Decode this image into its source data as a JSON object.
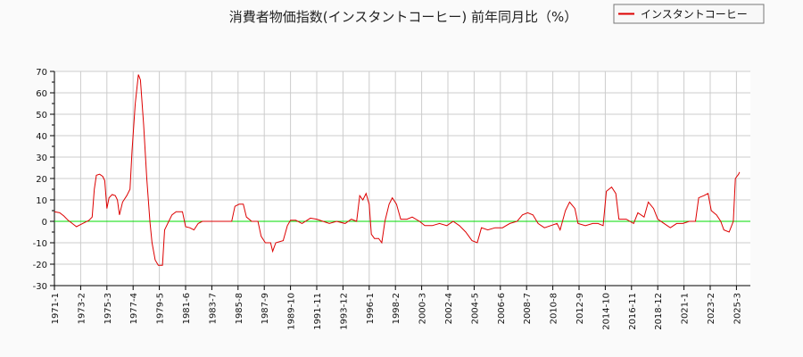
{
  "chart_data": {
    "type": "line",
    "title": "消費者物価指数(インスタントコーヒー) 前年同月比（%）",
    "xlabel": "",
    "ylabel": "",
    "ylim": [
      -30,
      70
    ],
    "yticks": [
      70,
      60,
      50,
      40,
      30,
      20,
      10,
      0,
      -10,
      -20,
      -30
    ],
    "xlim": [
      "1971-1",
      "2025-6"
    ],
    "xticks": [
      "1971-1",
      "1973-2",
      "1975-3",
      "1977-4",
      "1979-5",
      "1981-6",
      "1983-7",
      "1985-8",
      "1987-9",
      "1989-10",
      "1991-11",
      "1993-12",
      "1996-1",
      "1998-2",
      "2000-3",
      "2002-4",
      "2004-5",
      "2006-6",
      "2008-7",
      "2010-8",
      "2012-9",
      "2014-10",
      "2016-11",
      "2018-12",
      "2021-1",
      "2023-2",
      "2025-3"
    ],
    "grid": true,
    "legend": {
      "position": "top-right",
      "entries": [
        "インスタントコーヒー"
      ]
    },
    "reference_line": {
      "y": 0,
      "color": "#00dd00"
    },
    "series": [
      {
        "name": "インスタントコーヒー",
        "color": "#dd0000",
        "points": [
          [
            "1971-1",
            4.5
          ],
          [
            "1971-6",
            4
          ],
          [
            "1971-10",
            2.5
          ],
          [
            "1972-2",
            0.5
          ],
          [
            "1972-6",
            -1
          ],
          [
            "1972-10",
            -2.5
          ],
          [
            "1973-2",
            -1.5
          ],
          [
            "1973-6",
            -0.5
          ],
          [
            "1973-10",
            0.5
          ],
          [
            "1974-1",
            2
          ],
          [
            "1974-3",
            15
          ],
          [
            "1974-5",
            21.5
          ],
          [
            "1974-8",
            22
          ],
          [
            "1974-11",
            21
          ],
          [
            "1975-1",
            19
          ],
          [
            "1975-3",
            6
          ],
          [
            "1975-5",
            11
          ],
          [
            "1975-8",
            12.5
          ],
          [
            "1975-11",
            12
          ],
          [
            "1976-1",
            10
          ],
          [
            "1976-3",
            3
          ],
          [
            "1976-6",
            9
          ],
          [
            "1976-10",
            12
          ],
          [
            "1977-1",
            15
          ],
          [
            "1977-3",
            33
          ],
          [
            "1977-6",
            55
          ],
          [
            "1977-9",
            68.5
          ],
          [
            "1977-11",
            66
          ],
          [
            "1978-2",
            45
          ],
          [
            "1978-5",
            20
          ],
          [
            "1978-8",
            0
          ],
          [
            "1978-10",
            -10
          ],
          [
            "1979-1",
            -18
          ],
          [
            "1979-4",
            -20.5
          ],
          [
            "1979-8",
            -20.5
          ],
          [
            "1979-10",
            -4
          ],
          [
            "1980-1",
            -1
          ],
          [
            "1980-5",
            3
          ],
          [
            "1980-9",
            4.5
          ],
          [
            "1981-3",
            4.5
          ],
          [
            "1981-6",
            -2.5
          ],
          [
            "1981-10",
            -3
          ],
          [
            "1982-2",
            -4
          ],
          [
            "1982-6",
            -1
          ],
          [
            "1982-10",
            0
          ],
          [
            "1983-6",
            0
          ],
          [
            "1984-6",
            0
          ],
          [
            "1985-2",
            0
          ],
          [
            "1985-5",
            7
          ],
          [
            "1985-9",
            8
          ],
          [
            "1986-1",
            8
          ],
          [
            "1986-4",
            2
          ],
          [
            "1986-9",
            0
          ],
          [
            "1987-3",
            0
          ],
          [
            "1987-6",
            -7
          ],
          [
            "1987-10",
            -10
          ],
          [
            "1988-3",
            -10
          ],
          [
            "1988-5",
            -14
          ],
          [
            "1988-8",
            -10
          ],
          [
            "1989-3",
            -9
          ],
          [
            "1989-7",
            -2
          ],
          [
            "1989-10",
            0.5
          ],
          [
            "1990-3",
            0.5
          ],
          [
            "1990-9",
            -1
          ],
          [
            "1991-5",
            1.5
          ],
          [
            "1991-11",
            1
          ],
          [
            "1992-5",
            0
          ],
          [
            "1992-11",
            -1
          ],
          [
            "1993-6",
            0
          ],
          [
            "1994-2",
            -1
          ],
          [
            "1994-8",
            1
          ],
          [
            "1995-1",
            0
          ],
          [
            "1995-4",
            12
          ],
          [
            "1995-7",
            10
          ],
          [
            "1995-10",
            13
          ],
          [
            "1996-1",
            8
          ],
          [
            "1996-3",
            -6
          ],
          [
            "1996-6",
            -8
          ],
          [
            "1996-10",
            -8
          ],
          [
            "1997-1",
            -10
          ],
          [
            "1997-4",
            0
          ],
          [
            "1997-8",
            8
          ],
          [
            "1997-11",
            11
          ],
          [
            "1998-3",
            8
          ],
          [
            "1998-7",
            1
          ],
          [
            "1999-1",
            1
          ],
          [
            "1999-6",
            2
          ],
          [
            "2000-1",
            0
          ],
          [
            "2000-6",
            -2
          ],
          [
            "2001-1",
            -2
          ],
          [
            "2001-8",
            -1
          ],
          [
            "2002-3",
            -2
          ],
          [
            "2002-9",
            0
          ],
          [
            "2003-3",
            -2
          ],
          [
            "2003-9",
            -5
          ],
          [
            "2004-3",
            -9
          ],
          [
            "2004-8",
            -10
          ],
          [
            "2004-12",
            -3
          ],
          [
            "2005-6",
            -4
          ],
          [
            "2006-1",
            -3
          ],
          [
            "2006-8",
            -3
          ],
          [
            "2007-3",
            -1
          ],
          [
            "2007-10",
            0
          ],
          [
            "2008-3",
            3
          ],
          [
            "2008-8",
            4
          ],
          [
            "2009-1",
            3
          ],
          [
            "2009-6",
            -1
          ],
          [
            "2009-12",
            -3
          ],
          [
            "2010-6",
            -2
          ],
          [
            "2010-12",
            -1
          ],
          [
            "2011-3",
            -4
          ],
          [
            "2011-8",
            5
          ],
          [
            "2011-12",
            9
          ],
          [
            "2012-5",
            6
          ],
          [
            "2012-8",
            -1
          ],
          [
            "2013-3",
            -2
          ],
          [
            "2013-10",
            -1
          ],
          [
            "2014-3",
            -1
          ],
          [
            "2014-8",
            -2
          ],
          [
            "2014-11",
            14
          ],
          [
            "2015-4",
            16
          ],
          [
            "2015-8",
            13
          ],
          [
            "2015-11",
            1
          ],
          [
            "2016-6",
            1
          ],
          [
            "2017-1",
            -1
          ],
          [
            "2017-5",
            4
          ],
          [
            "2017-11",
            2
          ],
          [
            "2018-3",
            9
          ],
          [
            "2018-8",
            6
          ],
          [
            "2018-12",
            1
          ],
          [
            "2019-6",
            -1
          ],
          [
            "2019-12",
            -3
          ],
          [
            "2020-6",
            -1
          ],
          [
            "2020-12",
            -1
          ],
          [
            "2021-6",
            0
          ],
          [
            "2021-12",
            0
          ],
          [
            "2022-3",
            11
          ],
          [
            "2022-8",
            12
          ],
          [
            "2022-12",
            13
          ],
          [
            "2023-3",
            5
          ],
          [
            "2023-8",
            3
          ],
          [
            "2023-12",
            0
          ],
          [
            "2024-3",
            -4
          ],
          [
            "2024-8",
            -5
          ],
          [
            "2024-12",
            0
          ],
          [
            "2025-2",
            20
          ],
          [
            "2025-5",
            22
          ],
          [
            "2025-6",
            23
          ]
        ]
      }
    ]
  },
  "legend_label": "インスタントコーヒー"
}
